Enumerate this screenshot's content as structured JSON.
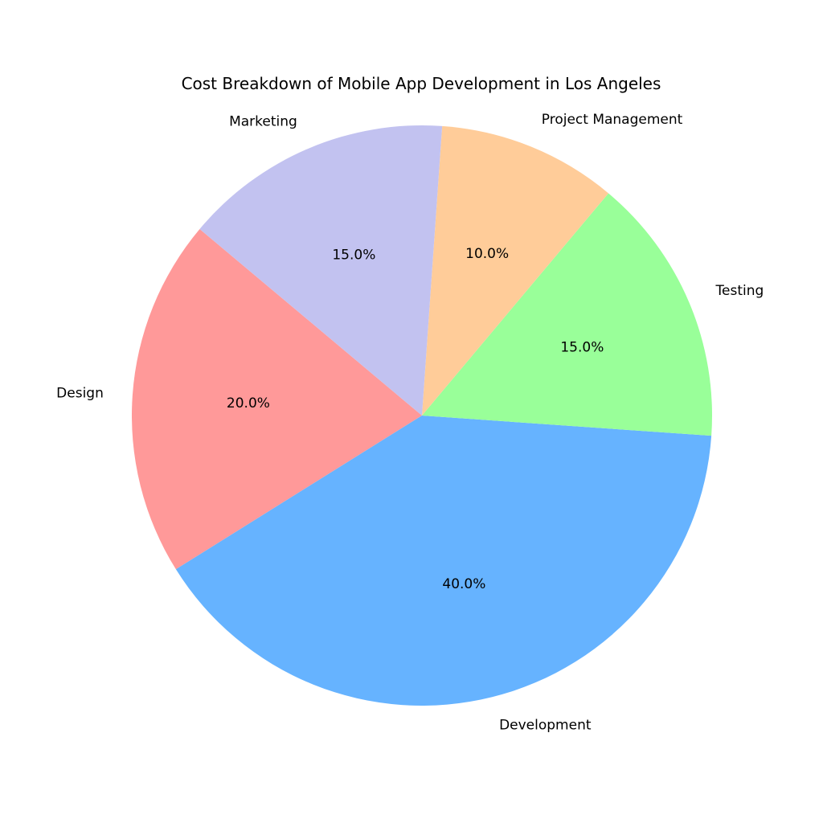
{
  "chart_data": {
    "type": "pie",
    "title": "Cost Breakdown of Mobile App Development in Los Angeles",
    "categories": [
      "Design",
      "Development",
      "Testing",
      "Project Management",
      "Marketing"
    ],
    "values": [
      20.0,
      40.0,
      15.0,
      10.0,
      15.0
    ],
    "percent_labels": [
      "20.0%",
      "40.0%",
      "15.0%",
      "10.0%",
      "15.0%"
    ],
    "colors": [
      "#ff9999",
      "#66b3ff",
      "#99ff99",
      "#ffcc99",
      "#c2c2f0"
    ],
    "start_angle_deg": 140,
    "direction": "counterclockwise"
  }
}
